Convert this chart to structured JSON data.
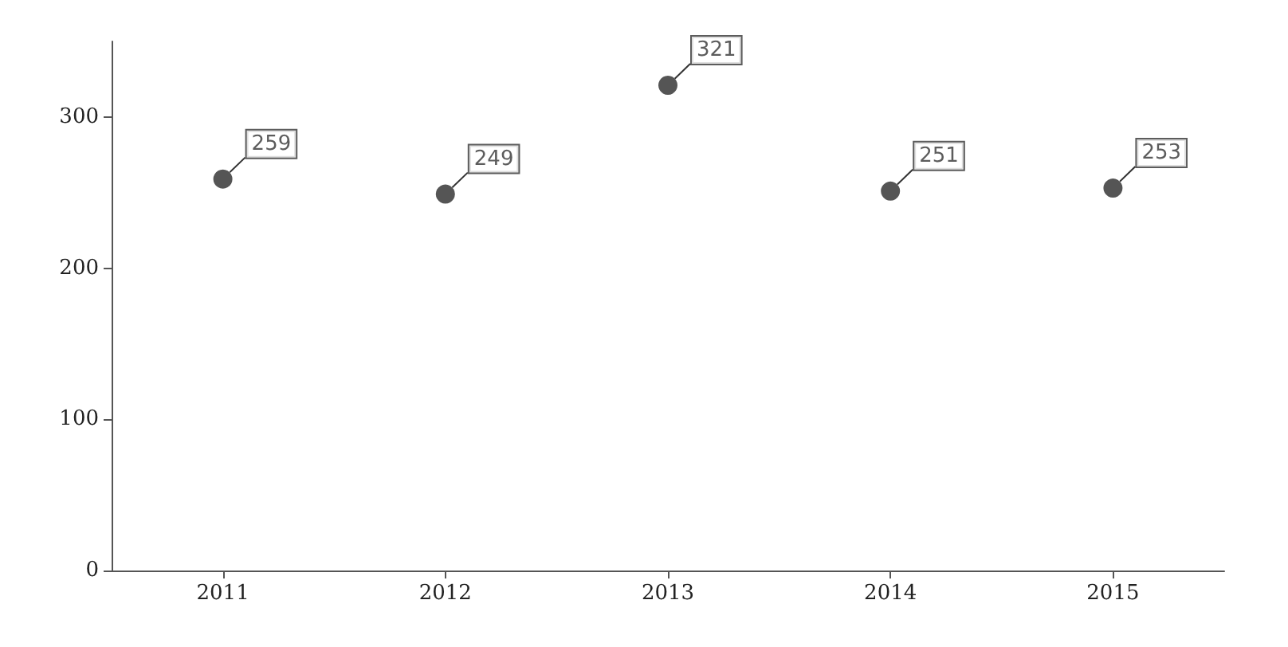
{
  "chart_data": {
    "type": "scatter",
    "categories": [
      "2011",
      "2012",
      "2013",
      "2014",
      "2015"
    ],
    "values": [
      259,
      249,
      321,
      251,
      253
    ],
    "color": "#2b2b2b",
    "ylim": [
      0,
      350
    ],
    "yticks": [
      0,
      100,
      200,
      300
    ],
    "data_labels": true,
    "marker": "circle",
    "grid": false
  }
}
